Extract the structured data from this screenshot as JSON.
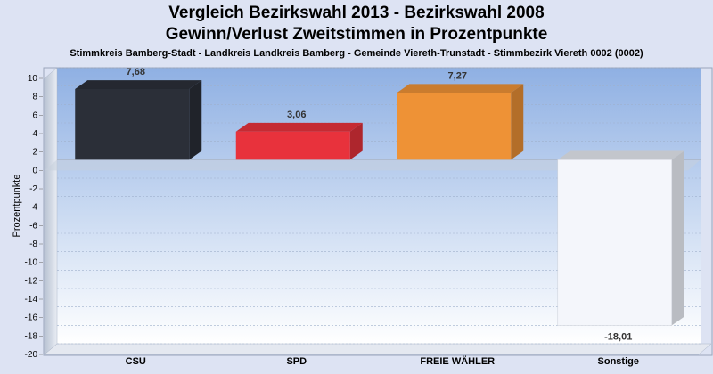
{
  "header": {
    "title_line1": "Vergleich Bezirkswahl 2013 - Bezirkswahl 2008",
    "title_line2": "Gewinn/Verlust Zweitstimmen in Prozentpunkte",
    "subtitle": "Stimmkreis Bamberg-Stadt - Landkreis Landkreis Bamberg - Gemeinde Viereth-Trunstadt - Stimmbezirk Viereth 0002 (0002)"
  },
  "chart_data": {
    "type": "bar",
    "title": "Vergleich Bezirkswahl 2013 - Bezirkswahl 2008",
    "subtitle": "Gewinn/Verlust Zweitstimmen in Prozentpunkte",
    "xlabel": "",
    "ylabel": "Prozentpunkte",
    "ylim": [
      -20,
      10
    ],
    "yticks": [
      10,
      8,
      6,
      4,
      2,
      0,
      -2,
      -4,
      -6,
      -8,
      -10,
      -12,
      -14,
      -16,
      -18,
      -20
    ],
    "grid": true,
    "categories": [
      "CSU",
      "SPD",
      "FREIE WÄHLER",
      "Sonstige"
    ],
    "values": [
      7.68,
      3.06,
      7.27,
      -18.01
    ],
    "value_labels": [
      "7,68",
      "3,06",
      "7,27",
      "-18,01"
    ],
    "colors": [
      "#2b2f38",
      "#e8323c",
      "#ee9236",
      "#f4f6fb"
    ]
  }
}
